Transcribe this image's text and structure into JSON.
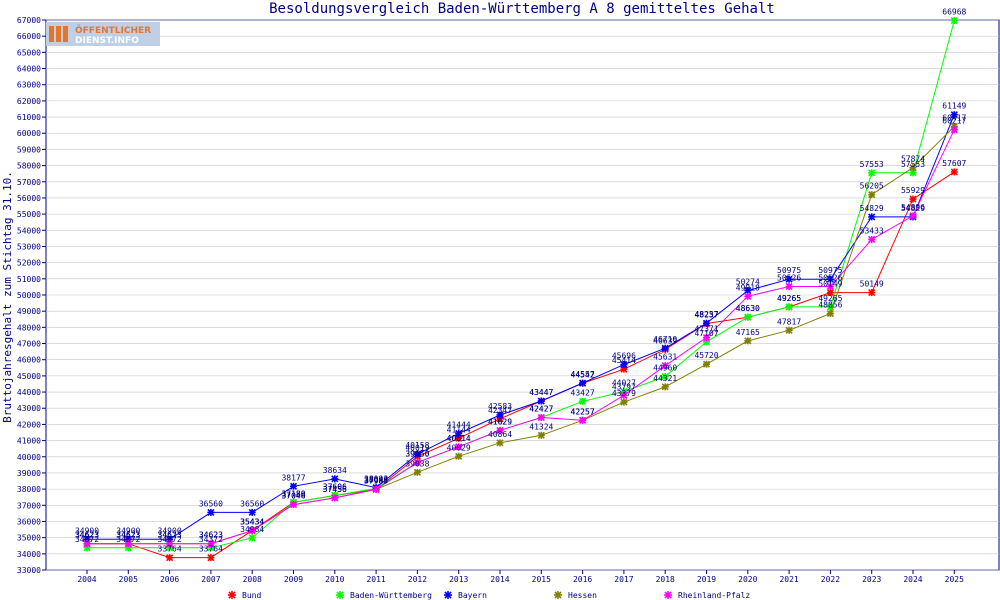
{
  "chart_data": {
    "type": "line",
    "title": "Besoldungsvergleich Baden-Württemberg A 8 gemitteltes Gehalt",
    "xlabel": "",
    "ylabel": "Bruttojahresgehalt zum Stichtag 31.10.",
    "ylim": [
      33000,
      67000
    ],
    "y_ticks": [
      33000,
      34000,
      35000,
      36000,
      37000,
      38000,
      39000,
      40000,
      41000,
      42000,
      43000,
      44000,
      45000,
      46000,
      47000,
      48000,
      49000,
      50000,
      51000,
      52000,
      53000,
      54000,
      55000,
      56000,
      57000,
      58000,
      59000,
      60000,
      61000,
      62000,
      63000,
      64000,
      65000,
      66000,
      67000
    ],
    "x": [
      2004,
      2005,
      2006,
      2007,
      2008,
      2009,
      2010,
      2011,
      2012,
      2013,
      2014,
      2015,
      2016,
      2017,
      2018,
      2019,
      2020,
      2021,
      2022,
      2023,
      2024,
      2025
    ],
    "grid": true,
    "legend_position": "bottom",
    "logo_text": [
      "ÖFFENTLICHER",
      "DIENST.INFO"
    ],
    "series": [
      {
        "name": "Bund",
        "color": "#ff0000",
        "values": [
          34623,
          34623,
          33764,
          33764,
          35434,
          37180,
          37606,
          37985,
          40019,
          41144,
          42347,
          43447,
          44542,
          45414,
          46639,
          48237,
          48630,
          49265,
          50149,
          50149,
          55929,
          57607
        ]
      },
      {
        "name": "Baden-Württemberg",
        "color": "#00ff00",
        "values": [
          34372,
          34372,
          34372,
          34372,
          34984,
          37180,
          37606,
          38043,
          39650,
          40614,
          41629,
          42427,
          43427,
          44027,
          44960,
          47107,
          48630,
          49265,
          49265,
          57553,
          57553,
          66968
        ]
      },
      {
        "name": "Bayern",
        "color": "#0000ff",
        "values": [
          34900,
          34900,
          34900,
          36560,
          36560,
          38177,
          38634,
          38093,
          40158,
          41444,
          42583,
          43447,
          44557,
          45696,
          46710,
          48257,
          50274,
          50975,
          50975,
          54829,
          54829,
          61149
        ]
      },
      {
        "name": "Hessen",
        "color": "#808000",
        "values": [
          34623,
          34623,
          34623,
          34623,
          35434,
          37046,
          37456,
          37985,
          39038,
          40029,
          40864,
          41324,
          42257,
          43379,
          44321,
          45720,
          47165,
          47817,
          48856,
          56205,
          57874,
          60417
        ]
      },
      {
        "name": "Rheinland-Pfalz",
        "color": "#ff00ff",
        "values": [
          34623,
          34623,
          34623,
          34623,
          35434,
          37046,
          37456,
          37985,
          39650,
          40614,
          41629,
          42427,
          42257,
          43797,
          45631,
          47371,
          49918,
          50526,
          50526,
          53433,
          54896,
          60217
        ]
      }
    ]
  }
}
